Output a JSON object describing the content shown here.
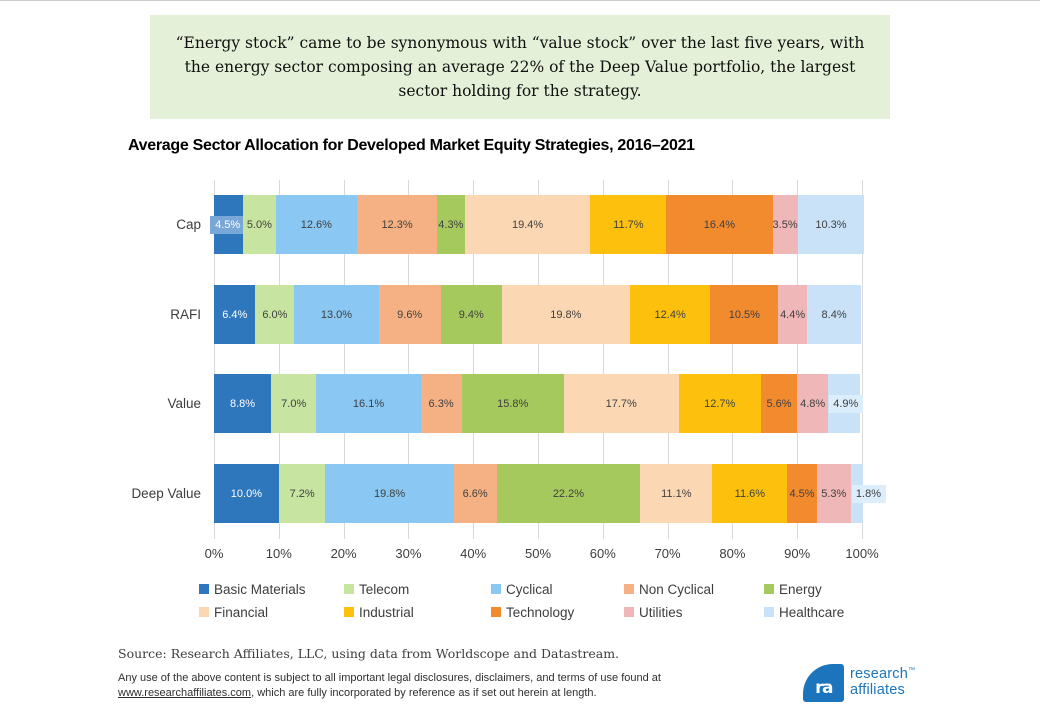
{
  "quote": {
    "text": "“Energy stock” came to be synonymous with “value stock” over the last five years, with the energy sector composing an average 22% of the Deep Value portfolio, the largest sector holding for the strategy."
  },
  "chart": {
    "title": "Average Sector Allocation for Developed Market Equity Strategies, 2016–2021"
  },
  "chart_data": {
    "type": "bar",
    "orientation": "horizontal-stacked",
    "title": "Average Sector Allocation for Developed Market Equity Strategies, 2016–2021",
    "categories": [
      "Cap",
      "RAFI",
      "Value",
      "Deep Value"
    ],
    "series": [
      {
        "name": "Basic Materials",
        "color": "#2f77bd",
        "values": [
          4.5,
          6.4,
          8.8,
          10.0
        ]
      },
      {
        "name": "Telecom",
        "color": "#c7e4a0",
        "values": [
          5.0,
          6.0,
          7.0,
          7.2
        ]
      },
      {
        "name": "Cyclical",
        "color": "#8ac7f2",
        "values": [
          12.6,
          13.0,
          16.1,
          19.8
        ]
      },
      {
        "name": "Non Cyclical",
        "color": "#f5b183",
        "values": [
          12.3,
          9.6,
          6.3,
          6.6
        ]
      },
      {
        "name": "Energy",
        "color": "#a6c95e",
        "values": [
          4.3,
          9.4,
          15.8,
          22.2
        ]
      },
      {
        "name": "Financial",
        "color": "#fcd7b4",
        "values": [
          19.4,
          19.8,
          17.7,
          11.1
        ]
      },
      {
        "name": "Industrial",
        "color": "#fdc00c",
        "values": [
          11.7,
          12.4,
          12.7,
          11.6
        ]
      },
      {
        "name": "Technology",
        "color": "#f28a2e",
        "values": [
          16.4,
          10.5,
          5.6,
          4.5
        ]
      },
      {
        "name": "Utilities",
        "color": "#efb7b7",
        "values": [
          3.5,
          4.4,
          4.8,
          5.3
        ]
      },
      {
        "name": "Healthcare",
        "color": "#c9e2f8",
        "values": [
          10.3,
          8.4,
          4.9,
          1.8
        ]
      }
    ],
    "xlim": [
      0,
      100
    ],
    "x_ticks": [
      "0%",
      "10%",
      "20%",
      "30%",
      "40%",
      "50%",
      "60%",
      "70%",
      "80%",
      "90%",
      "100%"
    ],
    "legend_position": "bottom",
    "grid": "vertical",
    "label_format": "one-decimal-percent",
    "label_overrides": [
      {
        "series": 0,
        "category": 0,
        "class": "spill-left"
      },
      {
        "series": 9,
        "category": 2,
        "class": "spill-right"
      },
      {
        "series": 9,
        "category": 3,
        "class": "spill-right"
      }
    ],
    "colors": {
      "grid": "#d9d9d9",
      "label_dark": "#404040",
      "label_white": "#ffffff",
      "overflow_label_blue_bg": "#79a7d8",
      "overflow_label_pale_bg": "#dcedfb",
      "quote_background": "#e4f1d8"
    }
  },
  "footer": {
    "source": "Source: Research Affiliates, LLC, using data from Worldscope and Datastream.",
    "disclaimer_pre": "Any use of the above content is subject to all important legal disclosures, disclaimers, and terms of use found at ",
    "link_text": "www.researchaffiliates.com",
    "disclaimer_post": ", which are fully incorporated by reference as if set out herein at length."
  },
  "logo": {
    "mark_text": "ra",
    "line1": "research",
    "tm": "™",
    "line2": "affiliates",
    "color": "#1c75bc"
  }
}
